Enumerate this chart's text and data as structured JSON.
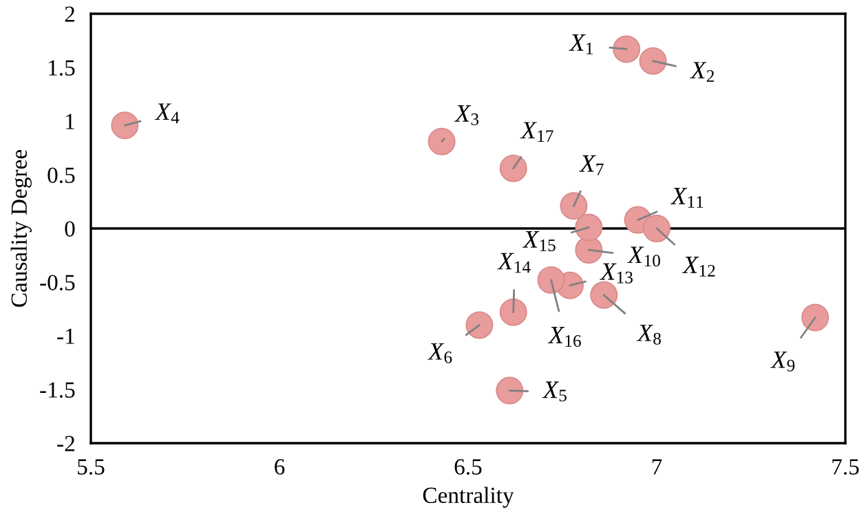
{
  "chart_data": {
    "type": "scatter",
    "xlabel": "Centrality",
    "ylabel": "Causality Degree",
    "xlim": [
      5.5,
      7.5
    ],
    "xticks": [
      5.5,
      6,
      6.5,
      7,
      7.5
    ],
    "ylim": [
      -2,
      2
    ],
    "yticks": [
      -2,
      -1.5,
      -1,
      -0.5,
      0,
      0.5,
      1,
      1.5,
      2
    ],
    "grid": false,
    "legend": false,
    "marker": "circle",
    "ref_lines": [
      {
        "axis": "y",
        "value": 0,
        "color": "#000000"
      }
    ],
    "series": [
      {
        "color": "#e89c9c",
        "x": [
          6.92,
          6.99,
          6.43,
          5.59,
          6.61,
          6.53,
          6.78,
          6.86,
          7.42,
          6.82,
          6.95,
          7.0,
          6.77,
          6.62,
          6.82,
          6.72,
          6.62
        ],
        "values": [
          1.67,
          1.56,
          0.81,
          0.96,
          -1.51,
          -0.9,
          0.21,
          -0.62,
          -0.83,
          -0.2,
          0.08,
          0.0,
          -0.53,
          -0.78,
          0.01,
          -0.48,
          0.56
        ]
      }
    ],
    "annotations": [
      {
        "text": "X$_{1}$",
        "x": 6.92,
        "y": 1.67
      },
      {
        "text": "X$_{2}$",
        "x": 6.99,
        "y": 1.56
      },
      {
        "text": "X$_{3}$",
        "x": 6.43,
        "y": 0.81
      },
      {
        "text": "X$_{4}$",
        "x": 5.59,
        "y": 0.96
      },
      {
        "text": "X$_{5}$",
        "x": 6.61,
        "y": -1.51
      },
      {
        "text": "X$_{6}$",
        "x": 6.53,
        "y": -0.9
      },
      {
        "text": "X$_{7}$",
        "x": 6.78,
        "y": 0.21
      },
      {
        "text": "X$_{8}$",
        "x": 6.86,
        "y": -0.62
      },
      {
        "text": "X$_{9}$",
        "x": 7.42,
        "y": -0.83
      },
      {
        "text": "X$_{10}$",
        "x": 6.82,
        "y": -0.2
      },
      {
        "text": "X$_{11}$",
        "x": 6.95,
        "y": 0.08
      },
      {
        "text": "X$_{12}$",
        "x": 7.0,
        "y": 0.0
      },
      {
        "text": "X$_{13}$",
        "x": 6.77,
        "y": -0.53
      },
      {
        "text": "X$_{14}$",
        "x": 6.62,
        "y": -0.78
      },
      {
        "text": "X$_{15}$",
        "x": 6.82,
        "y": 0.01
      },
      {
        "text": "X$_{16}$",
        "x": 6.72,
        "y": -0.48
      },
      {
        "text": "X$_{17}$",
        "x": 6.62,
        "y": 0.56
      }
    ]
  }
}
